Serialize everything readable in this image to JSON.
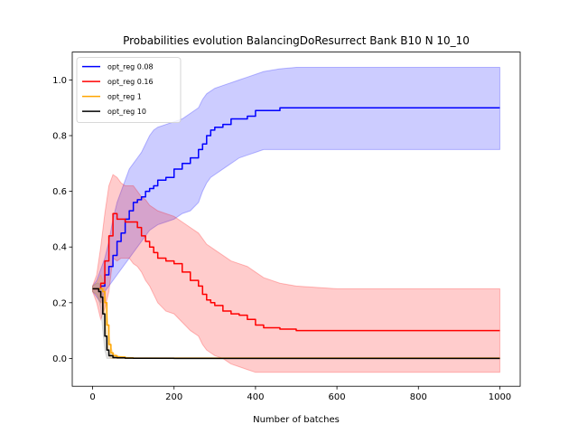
{
  "chart_data": {
    "type": "line",
    "title": "Probabilities evolution BalancingDoResurrect Bank B10 N 10_10",
    "xlabel": "Number of batches",
    "ylabel": "",
    "xlim": [
      -50,
      1050
    ],
    "ylim": [
      -0.1,
      1.1
    ],
    "x_ticks": [
      0,
      200,
      400,
      600,
      800,
      1000
    ],
    "y_ticks": [
      0.0,
      0.2,
      0.4,
      0.6,
      0.8,
      1.0
    ],
    "x_tick_labels": [
      "0",
      "200",
      "400",
      "600",
      "800",
      "1000"
    ],
    "y_tick_labels": [
      "0.0",
      "0.2",
      "0.4",
      "0.6",
      "0.8",
      "1.0"
    ],
    "grid": false,
    "legend_position": "top-left",
    "series": [
      {
        "name": "opt_reg 0.08",
        "color": "#0000ff",
        "band_color": "#0000ff",
        "x": [
          0,
          10,
          20,
          30,
          40,
          50,
          60,
          70,
          80,
          90,
          100,
          110,
          120,
          130,
          140,
          150,
          160,
          180,
          200,
          220,
          240,
          260,
          270,
          280,
          290,
          300,
          320,
          340,
          360,
          380,
          400,
          420,
          460,
          500,
          600,
          700,
          800,
          900,
          1000
        ],
        "values": [
          0.25,
          0.25,
          0.26,
          0.3,
          0.33,
          0.37,
          0.42,
          0.45,
          0.5,
          0.53,
          0.56,
          0.57,
          0.58,
          0.6,
          0.61,
          0.62,
          0.64,
          0.65,
          0.68,
          0.7,
          0.72,
          0.75,
          0.77,
          0.8,
          0.82,
          0.83,
          0.84,
          0.86,
          0.86,
          0.87,
          0.89,
          0.89,
          0.9,
          0.9,
          0.9,
          0.9,
          0.9,
          0.9,
          0.9
        ],
        "band_upper": [
          0.26,
          0.28,
          0.32,
          0.36,
          0.42,
          0.5,
          0.56,
          0.6,
          0.64,
          0.68,
          0.7,
          0.72,
          0.74,
          0.77,
          0.8,
          0.82,
          0.83,
          0.84,
          0.85,
          0.86,
          0.88,
          0.9,
          0.93,
          0.95,
          0.96,
          0.97,
          0.98,
          0.99,
          1.0,
          1.01,
          1.02,
          1.03,
          1.04,
          1.045,
          1.045,
          1.045,
          1.045,
          1.045,
          1.045
        ],
        "band_lower": [
          0.24,
          0.22,
          0.2,
          0.24,
          0.26,
          0.28,
          0.3,
          0.32,
          0.34,
          0.36,
          0.38,
          0.4,
          0.42,
          0.44,
          0.46,
          0.47,
          0.48,
          0.49,
          0.5,
          0.52,
          0.53,
          0.56,
          0.6,
          0.63,
          0.65,
          0.66,
          0.68,
          0.7,
          0.72,
          0.73,
          0.74,
          0.75,
          0.75,
          0.75,
          0.75,
          0.75,
          0.75,
          0.75,
          0.75
        ]
      },
      {
        "name": "opt_reg 0.16",
        "color": "#ff0000",
        "band_color": "#ff0000",
        "x": [
          0,
          10,
          20,
          30,
          40,
          50,
          60,
          70,
          80,
          90,
          100,
          110,
          120,
          130,
          140,
          150,
          160,
          180,
          200,
          220,
          240,
          260,
          270,
          280,
          290,
          300,
          320,
          340,
          360,
          380,
          400,
          420,
          460,
          500,
          600,
          700,
          800,
          900,
          1000
        ],
        "values": [
          0.25,
          0.25,
          0.27,
          0.35,
          0.44,
          0.52,
          0.5,
          0.5,
          0.49,
          0.49,
          0.49,
          0.47,
          0.44,
          0.42,
          0.4,
          0.38,
          0.36,
          0.35,
          0.34,
          0.31,
          0.28,
          0.26,
          0.23,
          0.21,
          0.2,
          0.19,
          0.17,
          0.16,
          0.155,
          0.14,
          0.12,
          0.11,
          0.105,
          0.1,
          0.1,
          0.1,
          0.1,
          0.1,
          0.1
        ],
        "band_upper": [
          0.26,
          0.3,
          0.4,
          0.52,
          0.62,
          0.66,
          0.65,
          0.63,
          0.62,
          0.62,
          0.62,
          0.6,
          0.58,
          0.57,
          0.55,
          0.54,
          0.53,
          0.52,
          0.51,
          0.49,
          0.47,
          0.45,
          0.43,
          0.41,
          0.4,
          0.39,
          0.37,
          0.35,
          0.34,
          0.33,
          0.31,
          0.29,
          0.27,
          0.26,
          0.25,
          0.25,
          0.25,
          0.25,
          0.25
        ],
        "band_lower": [
          0.24,
          0.2,
          0.14,
          0.18,
          0.24,
          0.36,
          0.35,
          0.36,
          0.36,
          0.36,
          0.34,
          0.33,
          0.31,
          0.28,
          0.26,
          0.23,
          0.2,
          0.17,
          0.16,
          0.13,
          0.1,
          0.08,
          0.05,
          0.03,
          0.02,
          0.01,
          0.0,
          -0.02,
          -0.03,
          -0.04,
          -0.05,
          -0.05,
          -0.05,
          -0.05,
          -0.05,
          -0.05,
          -0.05,
          -0.05,
          -0.05
        ]
      },
      {
        "name": "opt_reg 1",
        "color": "#ffa500",
        "band_color": "#ffa500",
        "x": [
          0,
          10,
          20,
          25,
          30,
          35,
          40,
          45,
          50,
          60,
          80,
          100,
          200,
          400,
          600,
          800,
          1000
        ],
        "values": [
          0.25,
          0.25,
          0.25,
          0.24,
          0.2,
          0.12,
          0.05,
          0.02,
          0.01,
          0.005,
          0.002,
          0.001,
          0.001,
          0.001,
          0.001,
          0.001,
          0.001
        ],
        "band_upper": [
          0.26,
          0.27,
          0.3,
          0.28,
          0.25,
          0.17,
          0.09,
          0.04,
          0.02,
          0.01,
          0.005,
          0.003,
          0.002,
          0.002,
          0.002,
          0.002,
          0.002
        ],
        "band_lower": [
          0.24,
          0.23,
          0.2,
          0.2,
          0.15,
          0.07,
          0.01,
          0.0,
          0.0,
          0.0,
          0.0,
          0.0,
          0.0,
          0.0,
          0.0,
          0.0,
          0.0
        ]
      },
      {
        "name": "opt_reg 10",
        "color": "#000000",
        "band_color": "#808080",
        "x": [
          0,
          10,
          15,
          20,
          25,
          30,
          35,
          40,
          50,
          60,
          80,
          100,
          200,
          400,
          600,
          800,
          1000
        ],
        "values": [
          0.25,
          0.25,
          0.24,
          0.22,
          0.16,
          0.08,
          0.03,
          0.01,
          0.003,
          0.002,
          0.001,
          0.0005,
          0.0,
          0.0,
          0.0,
          0.0,
          0.0
        ],
        "band_upper": [
          0.26,
          0.27,
          0.27,
          0.26,
          0.22,
          0.13,
          0.06,
          0.02,
          0.008,
          0.005,
          0.003,
          0.002,
          0.001,
          0.001,
          0.001,
          0.001,
          0.001
        ],
        "band_lower": [
          0.24,
          0.23,
          0.21,
          0.18,
          0.1,
          0.03,
          0.0,
          0.0,
          0.0,
          0.0,
          0.0,
          0.0,
          -0.001,
          -0.001,
          -0.001,
          -0.001,
          -0.001
        ]
      }
    ]
  }
}
